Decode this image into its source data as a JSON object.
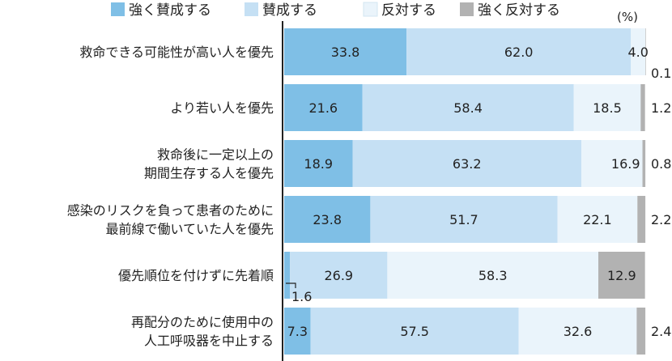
{
  "chart_data": {
    "type": "bar",
    "orientation": "horizontal",
    "stacked": true,
    "unit": "(%)",
    "xlim": [
      0,
      100
    ],
    "legend_position": "top",
    "categories": [
      [
        "救命できる可能性が高い人を優先"
      ],
      [
        "より若い人を優先"
      ],
      [
        "救命後に一定以上の",
        "期間生存する人を優先"
      ],
      [
        "感染のリスクを負って患者のために",
        "最前線で働いていた人を優先"
      ],
      [
        "優先順位を付けずに先着順"
      ],
      [
        "再配分のために使用中の",
        "人工呼吸器を中止する"
      ]
    ],
    "series": [
      {
        "name": "強く賛成する",
        "color": "#7fbfe6",
        "values": [
          33.8,
          21.6,
          18.9,
          23.8,
          1.6,
          7.3
        ]
      },
      {
        "name": "賛成する",
        "color": "#c5e0f4",
        "values": [
          62.0,
          58.4,
          63.2,
          51.7,
          26.9,
          57.5
        ]
      },
      {
        "name": "反対する",
        "color": "#eaf4fb",
        "values": [
          4.0,
          18.5,
          16.9,
          22.1,
          58.3,
          32.6
        ]
      },
      {
        "name": "強く反対する",
        "color": "#b2b2b2",
        "values": [
          0.1,
          1.2,
          0.8,
          2.2,
          12.9,
          2.4
        ]
      }
    ]
  }
}
